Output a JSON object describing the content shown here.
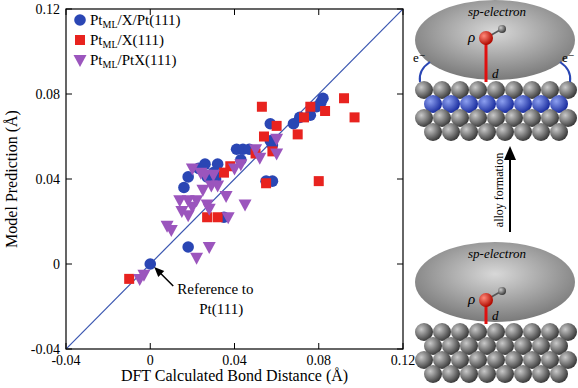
{
  "chart_data": {
    "type": "scatter",
    "x_label": "DFT Calculated Bond Distance (Å)",
    "y_label": "Model Prediction (Å)",
    "xlim": [
      -0.04,
      0.12
    ],
    "ylim": [
      -0.04,
      0.12
    ],
    "xticks": [
      -0.04,
      0,
      0.04,
      0.08,
      0.12
    ],
    "yticks": [
      -0.04,
      0,
      0.04,
      0.08,
      0.12
    ],
    "grid": false,
    "legend": "top-left",
    "reference_line": {
      "x": [
        -0.04,
        0.12
      ],
      "values": [
        -0.04,
        0.12
      ],
      "color": "#3a56b0"
    },
    "annotation": {
      "text": [
        "Reference to",
        "Pt(111)"
      ],
      "x": 0,
      "y": 0
    },
    "series": [
      {
        "name": "PtML/X/Pt(111)",
        "color": "#2a46b4",
        "marker": "circle",
        "x": [
          0,
          0.016,
          0.018,
          0.018,
          0.023,
          0.026,
          0.027,
          0.03,
          0.031,
          0.032,
          0.035,
          0.041,
          0.044,
          0.047,
          0.043,
          0.057,
          0.057,
          0.058,
          0.055,
          0.058,
          0.068,
          0.071,
          0.076,
          0.079,
          0.081,
          0.082
        ],
        "values": [
          0,
          0.036,
          0.041,
          0.008,
          0.045,
          0.047,
          0.041,
          0.043,
          0.04,
          0.047,
          0.022,
          0.054,
          0.054,
          0.054,
          0.049,
          0.058,
          0.066,
          0.056,
          0.039,
          0.039,
          0.066,
          0.069,
          0.07,
          0.074,
          0.076,
          0.078
        ]
      },
      {
        "name": "PtML/X(111)",
        "color": "#e8231f",
        "marker": "square",
        "x": [
          -0.01,
          0.027,
          0.032,
          0.035,
          0.038,
          0.05,
          0.053,
          0.054,
          0.055,
          0.058,
          0.06,
          0.07,
          0.073,
          0.076,
          0.08,
          0.083,
          0.092,
          0.097
        ],
        "values": [
          -0.007,
          0.022,
          0.022,
          0.043,
          0.046,
          0.052,
          0.074,
          0.06,
          0.038,
          0.053,
          0.065,
          0.061,
          0.069,
          0.074,
          0.039,
          0.072,
          0.078,
          0.069
        ]
      },
      {
        "name": "PtML/PtX(111)",
        "color": "#9b55bd",
        "marker": "triangle_down",
        "x": [
          -0.003,
          -0.005,
          0.008,
          0.01,
          0.014,
          0.015,
          0.018,
          0.018,
          0.02,
          0.02,
          0.022,
          0.024,
          0.025,
          0.026,
          0.027,
          0.028,
          0.029,
          0.03,
          0.032,
          0.036,
          0.022,
          0.028,
          0.037,
          0.04,
          0.043,
          0.045,
          0.05,
          0.052,
          0.06,
          0.06
        ],
        "values": [
          -0.005,
          -0.007,
          0.018,
          0.016,
          0.03,
          0.025,
          0.023,
          0.03,
          0.027,
          0.045,
          0.03,
          0.043,
          0.035,
          0.042,
          0.028,
          0.026,
          0.037,
          0.042,
          0.037,
          0.032,
          0.003,
          0.008,
          0.022,
          0.045,
          0.047,
          0.028,
          0.054,
          0.05,
          0.059,
          0.052
        ]
      }
    ]
  },
  "diagram": {
    "top": {
      "cloud_label": "sp-electron",
      "rho": "ρ",
      "d": "d",
      "electron_labels": [
        "e⁻",
        "e⁻"
      ]
    },
    "arrow_label": "alloy formation",
    "bottom": {
      "cloud_label": "sp-electron",
      "rho": "ρ",
      "d": "d"
    }
  }
}
